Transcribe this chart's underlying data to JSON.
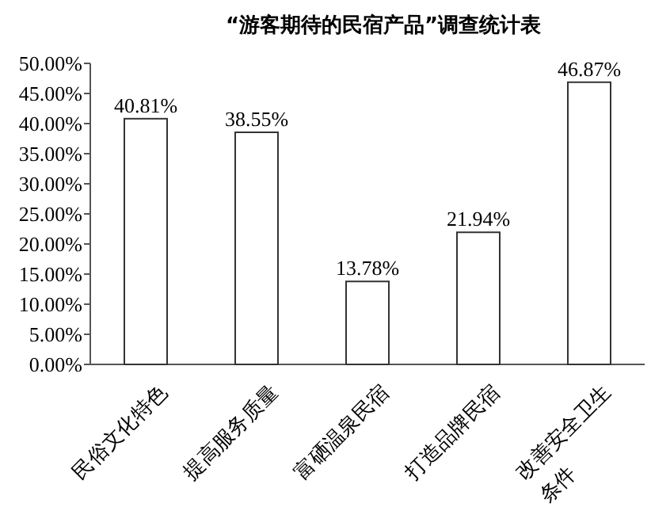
{
  "chart_data": {
    "type": "bar",
    "title": "“游客期待的民宿产品”调查统计表",
    "categories": [
      "民俗文化特色",
      "提高服务质量",
      "富硒温泉民宿",
      "打造品牌民宿",
      "改善安全卫生条件"
    ],
    "values": [
      40.81,
      38.55,
      13.78,
      21.94,
      46.87
    ],
    "value_labels": [
      "40.81%",
      "38.55%",
      "13.78%",
      "21.94%",
      "46.87%"
    ],
    "color": "#ffffff",
    "ylim": [
      0,
      50
    ],
    "yticks": [
      {
        "value": 0,
        "label": "0.00%"
      },
      {
        "value": 5,
        "label": "5.00%"
      },
      {
        "value": 10,
        "label": "10.00%"
      },
      {
        "value": 15,
        "label": "15.00%"
      },
      {
        "value": 20,
        "label": "20.00%"
      },
      {
        "value": 25,
        "label": "25.00%"
      },
      {
        "value": 30,
        "label": "30.00%"
      },
      {
        "value": 35,
        "label": "35.00%"
      },
      {
        "value": 40,
        "label": "40.00%"
      },
      {
        "value": 45,
        "label": "45.00%"
      },
      {
        "value": 50,
        "label": "50.00%"
      }
    ],
    "grid": false
  }
}
